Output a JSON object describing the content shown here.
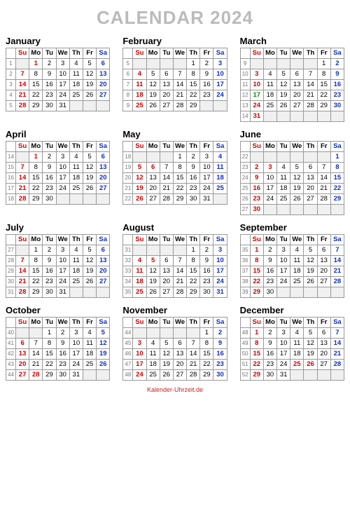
{
  "title": "CALENDAR 2024",
  "footer": "Kalender-Uhrzeit.de",
  "dow_labels": [
    "Su",
    "Mo",
    "Tu",
    "We",
    "Th",
    "Fr",
    "Sa"
  ],
  "colors": {
    "sun": "#d00000",
    "sat": "#1030c0",
    "wk": "#777777",
    "hol": "#d00000",
    "green": "#0a8f0a",
    "border": "#999999"
  },
  "months": [
    {
      "name": "January",
      "start": 1,
      "days": 31,
      "week0": 1,
      "hol": [
        1
      ],
      "green": []
    },
    {
      "name": "February",
      "start": 4,
      "days": 29,
      "week0": 5,
      "hol": [],
      "green": []
    },
    {
      "name": "March",
      "start": 5,
      "days": 31,
      "week0": 9,
      "hol": [],
      "green": [
        17
      ]
    },
    {
      "name": "April",
      "start": 1,
      "days": 30,
      "week0": 14,
      "hol": [
        1
      ],
      "green": []
    },
    {
      "name": "May",
      "start": 3,
      "days": 31,
      "week0": 18,
      "hol": [
        5,
        6,
        12,
        19,
        26
      ],
      "green": []
    },
    {
      "name": "June",
      "start": 6,
      "days": 30,
      "week0": 22,
      "hol": [
        2,
        3,
        9,
        16,
        23,
        30
      ],
      "green": []
    },
    {
      "name": "July",
      "start": 1,
      "days": 31,
      "week0": 27,
      "hol": [],
      "green": []
    },
    {
      "name": "August",
      "start": 4,
      "days": 31,
      "week0": 31,
      "hol": [
        4,
        5,
        11,
        18,
        25
      ],
      "green": []
    },
    {
      "name": "September",
      "start": 0,
      "days": 30,
      "week0": 35,
      "hol": [
        1,
        8,
        15,
        22,
        29
      ],
      "green": []
    },
    {
      "name": "October",
      "start": 2,
      "days": 31,
      "week0": 40,
      "hol": [
        28
      ],
      "green": []
    },
    {
      "name": "November",
      "start": 5,
      "days": 30,
      "week0": 44,
      "hol": [],
      "green": []
    },
    {
      "name": "December",
      "start": 0,
      "days": 31,
      "week0": 48,
      "hol": [
        1,
        8,
        15,
        22,
        25,
        26,
        29
      ],
      "green": []
    }
  ]
}
